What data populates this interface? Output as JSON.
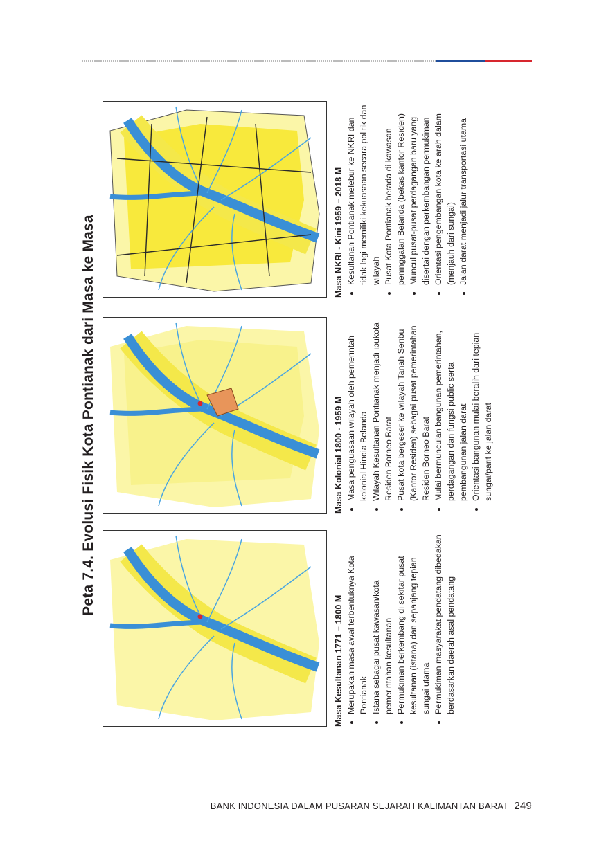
{
  "figure": {
    "title": "Peta 7.4. Evolusi Fisik Kota Pontianak dari Masa ke Masa",
    "panels": [
      {
        "heading": "Masa Kesultanan 1771 – 1800 M",
        "bullets": [
          "Merupakan masa awal terbentuknya Kota Pontianak",
          "Istana sebagai pusat kawasan/kota pemerintahan kesultanan",
          "Permukiman berkembang di sekitar pusat kesultanan (istana) dan sepanjang tepian sungai utama",
          "Permukiman masyarakat pendatang dibedakan berdasarkan daerah asal pendatang"
        ]
      },
      {
        "heading": "Masa Kolonial 1800 - 1959 M",
        "bullets": [
          "Masa penguasaan wilayah oleh pemerintah kolonial Hindia Belanda",
          "Wilayah Kesultanan Pontianak menjadi ibukota Residen Borneo Barat",
          "Pusat kota bergeser ke wilayah Tanah Seribu (Kantor Residen) sebagai pusat pemerintahan Residen Borneo Barat",
          "Mulai bermunculan bangunan pemerintahan, perdagangan dan fungsi public serta pembangunan jalan darat",
          "Orientasi bangunan mulai beralih dari tepian sungai/parit ke jalan darat"
        ]
      },
      {
        "heading": "Masa NKRI - Kini 1959 – 2018 M",
        "bullets": [
          "Kesultanan Pontianak melebur ke NKRI dan tidak lagi memiliki kekuasaan secara politik dan wilayah",
          "Pusat Kota Pontianak berada di kawasan peninggalan Belanda (bekas kantor Residen)",
          "Muncul pusat-pusat perdagangan baru yang disertai dengan perkembangan permukiman",
          "Orientasi pengembangan kota ke arah dalam (menjauh dari sungai)",
          "Jalan darat menjadi jalur transportasi utama"
        ]
      }
    ]
  },
  "footer": {
    "text": "BANK INDONESIA DALAM PUSARAN SEJARAH KALIMANTAN BARAT",
    "page": "249"
  }
}
